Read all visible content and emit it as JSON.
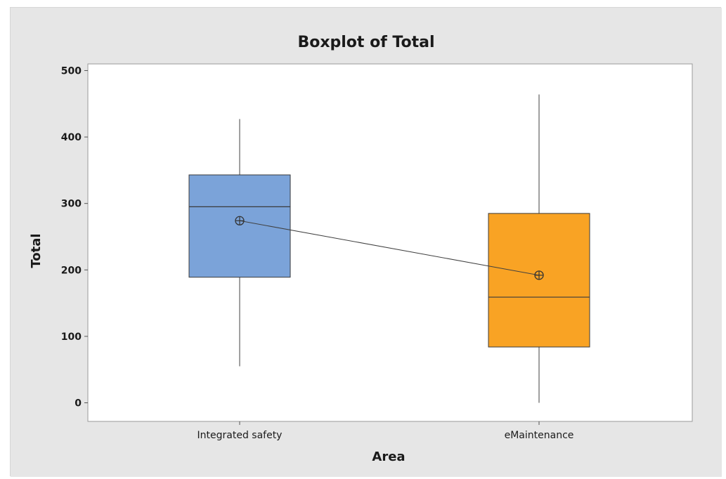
{
  "chart_data": {
    "type": "boxplot",
    "title": "Boxplot of Total",
    "xlabel": "Area",
    "ylabel": "Total",
    "ylim": [
      -28,
      510
    ],
    "yticks": [
      0,
      100,
      200,
      300,
      400,
      500
    ],
    "categories": [
      "Integrated safety",
      "eMaintenance"
    ],
    "boxes": [
      {
        "category": "Integrated safety",
        "min": 55,
        "q1": 189,
        "median": 295,
        "q3": 343,
        "max": 427,
        "mean": 274,
        "color": "#7ba3d9"
      },
      {
        "category": "eMaintenance",
        "min": 0,
        "q1": 84,
        "median": 159,
        "q3": 285,
        "max": 464,
        "mean": 192,
        "color": "#f9a324"
      }
    ],
    "mean_connect_line": true,
    "grid": false,
    "colors": {
      "figure_bg": "#e6e6e6",
      "plot_bg": "#ffffff",
      "line": "#404040"
    }
  }
}
